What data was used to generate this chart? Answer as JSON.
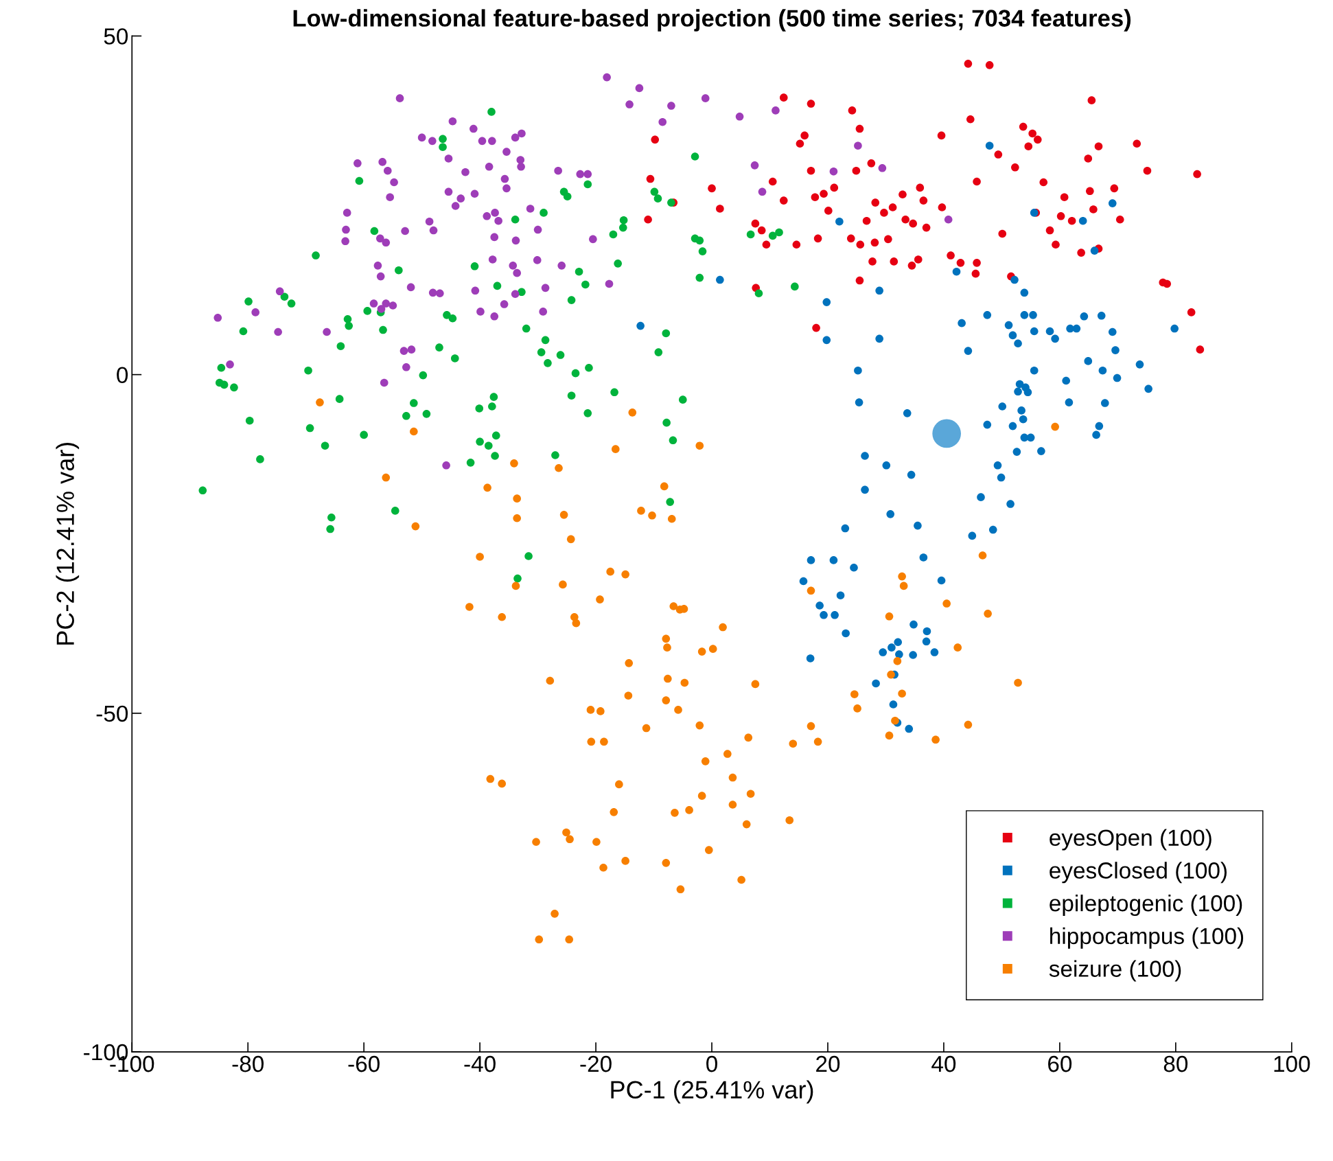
{
  "chart_data": {
    "type": "scatter",
    "title": "Low-dimensional feature-based projection (500 time series; 7034 features)",
    "xlabel": "PC-1 (25.41% var)",
    "ylabel": "PC-2 (12.41% var)",
    "xlim": [
      -100,
      100
    ],
    "ylim": [
      -100,
      50
    ],
    "xticks": [
      -100,
      -80,
      -60,
      -40,
      -20,
      0,
      20,
      40,
      60,
      80,
      100
    ],
    "yticks": [
      -100,
      -50,
      0,
      50
    ],
    "grid": false,
    "legend": "bottom right",
    "marker": "circle",
    "series": [
      {
        "name": "eyesOpen (100)",
        "color": "#e60012",
        "x": [
          44.2,
          47.9,
          12.4,
          65.5,
          17.1,
          24.2,
          44.6,
          25.5,
          53.7,
          55.3,
          -9.8,
          16,
          15.2,
          39.6,
          56.2,
          73.3,
          66.7,
          54.6,
          49.4,
          27.5,
          52.3,
          64.9,
          75.1,
          83.7,
          17.1,
          24.9,
          -10.6,
          10.5,
          0,
          45.7,
          57.2,
          69.4,
          32.9,
          35.9,
          21.1,
          19.3,
          17.8,
          12.4,
          60.8,
          65.2,
          36.5,
          28.2,
          20.1,
          1.4,
          -6.6,
          31.2,
          29.7,
          65.8,
          55.9,
          60.2,
          62.1,
          70.4,
          39.7,
          -11,
          7.5,
          26.7,
          34.7,
          37.0,
          58.3,
          50.1,
          8.6,
          14.6,
          18.3,
          24.0,
          25.6,
          28.1,
          9.4,
          59.3,
          63.7,
          66.7,
          41.2,
          35.6,
          27.7,
          31.4,
          42.9,
          45.7,
          34.5,
          45.5,
          25.5,
          51.6,
          7.6,
          77.8,
          78.5,
          82.7,
          18.0,
          84.2,
          33.4,
          30.4
        ],
        "values": [
          45.9,
          45.7,
          40.9,
          40.5,
          40.0,
          39.0,
          37.7,
          36.3,
          36.6,
          35.6,
          34.7,
          35.3,
          34.1,
          35.3,
          34.7,
          34.1,
          33.7,
          33.7,
          32.5,
          31.2,
          30.6,
          31.9,
          30.1,
          29.6,
          30.1,
          30.1,
          28.9,
          28.5,
          27.5,
          28.5,
          28.4,
          27.5,
          26.6,
          27.6,
          27.6,
          26.7,
          26.2,
          25.7,
          26.2,
          27.1,
          25.7,
          25.4,
          24.2,
          24.5,
          25.4,
          24.7,
          23.9,
          24.4,
          23.9,
          23.4,
          22.7,
          22.9,
          24.7,
          22.9,
          22.3,
          22.7,
          22.3,
          21.7,
          21.3,
          20.8,
          21.3,
          19.2,
          20.1,
          20.1,
          19.2,
          19.5,
          19.2,
          19.2,
          18.0,
          18.6,
          17.6,
          17.0,
          16.7,
          16.7,
          16.5,
          16.5,
          16.1,
          14.9,
          13.9,
          14.5,
          12.8,
          13.6,
          13.4,
          9.2,
          6.9,
          3.7,
          22.9,
          20.0
        ]
      },
      {
        "name": "eyesClosed (100)",
        "color": "#0072bd",
        "x": [
          47.9,
          69.1,
          64.0,
          55.6,
          66.0,
          22.0,
          1.4,
          28.9,
          42.2,
          52.2,
          53.9,
          19.8,
          -12.3,
          47.5,
          43.1,
          51.2,
          53.9,
          55.4,
          64.2,
          67.2,
          61.8,
          79.8,
          51.9,
          55.6,
          58.3,
          59.2,
          69.1,
          62.9,
          19.8,
          28.9,
          52.8,
          44.2,
          69.6,
          64.9,
          73.8,
          67.4,
          69.9,
          55.6,
          25.2,
          61.1,
          53.1,
          54.1,
          75.3,
          52.8,
          54.5,
          25.4,
          61.6,
          67.8,
          50.1,
          53.4,
          33.7,
          53.7,
          47.5,
          66.8,
          51.9,
          66.3,
          53.9,
          55.0,
          56.8,
          52.6,
          26.4,
          49.3,
          30.1,
          34.4,
          49.9,
          26.4,
          46.4,
          51.5,
          30.8,
          35.5,
          23.0,
          48.5,
          44.9,
          17.1,
          21.0,
          36.5,
          24.5,
          15.8,
          39.6,
          18.6,
          22.2,
          19.3,
          21.2,
          34.8,
          23.1,
          37.1,
          37.0,
          29.5,
          32.1,
          32.3,
          34.7,
          38.4,
          17.0,
          31.0,
          31.5,
          28.3,
          31.3,
          32.0,
          34.0
        ],
        "values": [
          33.8,
          25.3,
          22.7,
          23.9,
          18.3,
          22.6,
          14.0,
          12.4,
          15.2,
          14.0,
          12.1,
          10.7,
          7.2,
          8.8,
          7.6,
          7.3,
          8.8,
          8.8,
          8.6,
          8.7,
          6.8,
          6.8,
          5.8,
          6.4,
          6.4,
          5.3,
          6.3,
          6.8,
          5.1,
          5.3,
          4.6,
          3.5,
          3.6,
          2.0,
          1.5,
          0.6,
          -0.5,
          0.6,
          0.6,
          -0.9,
          -1.4,
          -1.9,
          -2.1,
          -2.5,
          -2.6,
          -4.1,
          -4.1,
          -4.2,
          -4.7,
          -5.3,
          -5.7,
          -6.6,
          -7.4,
          -7.6,
          -7.6,
          -8.9,
          -9.3,
          -9.3,
          -11.3,
          -11.4,
          -12.0,
          -13.4,
          -13.4,
          -14.8,
          -15.2,
          -17.0,
          -18.1,
          -19.1,
          -20.6,
          -22.3,
          -22.7,
          -22.9,
          -23.8,
          -27.4,
          -27.4,
          -27.0,
          -28.5,
          -30.5,
          -30.4,
          -34.1,
          -32.6,
          -35.5,
          -35.5,
          -36.9,
          -38.2,
          -37.9,
          -39.4,
          -41.0,
          -39.5,
          -41.3,
          -41.4,
          -41.0,
          -41.9,
          -40.3,
          -44.3,
          -45.6,
          -48.7,
          -51.4,
          -52.3
        ]
      },
      {
        "name": "epileptogenic (100)",
        "color": "#00b33c",
        "x": [
          -38,
          -46.4,
          -46.4,
          -2.9,
          -60.8,
          -21.4,
          -25.5,
          -24.9,
          -9.9,
          -9.3,
          -7,
          -33.9,
          -15.2,
          -15.3,
          -17,
          -29,
          -2.9,
          -2.1,
          6.7,
          10.5,
          11.6,
          -58.2,
          -1.6,
          -16.2,
          -68.3,
          -40.9,
          -54,
          -22.9,
          -21.8,
          -37,
          -2.1,
          14.3,
          8.1,
          -32.8,
          -24.2,
          -79.9,
          -72.5,
          -73.7,
          -59.4,
          -62.8,
          -62.6,
          -57.1,
          -45.7,
          -44.7,
          -80.8,
          -56.7,
          -32,
          -7.9,
          -28.7,
          -64,
          -47,
          -9.2,
          -29.4,
          -26.1,
          -44.3,
          -28.3,
          -21.2,
          -23.5,
          -84.6,
          -69.6,
          -49.8,
          -84.9,
          -84.1,
          -82.4,
          -24.2,
          -37.6,
          -16.8,
          -64.2,
          -5,
          -51.4,
          -37.9,
          -40.1,
          -21.4,
          -49.2,
          -52.7,
          -79.7,
          -7.8,
          -69.3,
          -60,
          -37.2,
          -40,
          -38.5,
          -6.7,
          -66.7,
          -37.4,
          -27,
          -77.9,
          -41.6,
          -87.8,
          -7.2,
          -54.6,
          -65.6,
          -65.8,
          -31.6,
          -33.5
        ],
        "values": [
          38.8,
          34.8,
          33.6,
          32.2,
          28.6,
          28.1,
          27.0,
          26.3,
          27.0,
          26.0,
          25.4,
          22.9,
          22.8,
          21.7,
          20.7,
          23.9,
          20.1,
          19.8,
          20.7,
          20.5,
          21.0,
          21.2,
          18.2,
          16.4,
          17.6,
          16.0,
          15.4,
          15.2,
          13.3,
          13.1,
          14.3,
          13.0,
          12.0,
          12.2,
          11.0,
          10.8,
          10.5,
          11.5,
          9.4,
          8.2,
          7.2,
          9.2,
          8.8,
          8.3,
          6.4,
          6.6,
          6.8,
          6.1,
          5.1,
          4.2,
          4.0,
          3.3,
          3.3,
          2.9,
          2.4,
          1.7,
          1.0,
          0.2,
          1.0,
          0.6,
          -0.1,
          -1.2,
          -1.5,
          -1.9,
          -3.1,
          -3.3,
          -2.6,
          -3.6,
          -3.7,
          -4.2,
          -4.7,
          -5.0,
          -5.7,
          -5.8,
          -6.1,
          -6.8,
          -7.1,
          -7.9,
          -8.9,
          -9.0,
          -9.9,
          -10.5,
          -9.7,
          -10.5,
          -12.0,
          -11.9,
          -12.5,
          -13.0,
          -17.1,
          -18.8,
          -20.1,
          -21.1,
          -22.8,
          -26.8,
          -30.1
        ]
      },
      {
        "name": "hippocampus (100)",
        "color": "#9e3db8",
        "x": [
          -18.1,
          -12.5,
          -53.8,
          -1.1,
          -14.2,
          -7,
          4.8,
          11,
          -8.5,
          -44.7,
          -41.1,
          -32.8,
          -33.9,
          -50,
          -48.2,
          -39.6,
          -37.9,
          -35.4,
          -33,
          -32.9,
          -45.4,
          -61.1,
          -56.8,
          -55.9,
          -54.8,
          -55.5,
          -42.5,
          -38.4,
          -35.7,
          -35.4,
          -26.5,
          -22.7,
          -21.4,
          7.4,
          21,
          25.2,
          29.4,
          8.7,
          -45.4,
          -43.3,
          -40.9,
          -44.2,
          -62.9,
          -63.1,
          -48.7,
          -48,
          -38.8,
          -37.4,
          -36.8,
          -31.3,
          -52.9,
          -57.2,
          -56.2,
          -37.5,
          -33.8,
          -30,
          -20.5,
          -63.2,
          -37.8,
          -30.1,
          -25.9,
          -57.6,
          -57.1,
          -34.3,
          -33.6,
          -40.8,
          -33.9,
          -28.7,
          -17.7,
          -51.9,
          -48.1,
          -46.9,
          -74.5,
          -56.2,
          -55,
          -57,
          -58.3,
          -39.9,
          -37.5,
          -35.8,
          -29.1,
          -78.7,
          -85.2,
          -74.8,
          -66.4,
          40.8,
          -53.1,
          -51.8,
          -52.7,
          -83.1,
          -56.5,
          -45.8
        ],
        "values": [
          43.9,
          42.3,
          40.8,
          40.8,
          39.9,
          39.7,
          38.1,
          39.0,
          37.3,
          37.4,
          36.3,
          35.6,
          35.0,
          35.0,
          34.5,
          34.5,
          34.5,
          32.9,
          31.7,
          30.7,
          31.9,
          31.2,
          31.4,
          30.1,
          28.4,
          26.2,
          29.9,
          30.7,
          28.9,
          27.5,
          30.1,
          29.6,
          29.6,
          30.9,
          30.0,
          33.8,
          30.5,
          27.0,
          27.0,
          26.0,
          26.7,
          24.9,
          23.9,
          21.4,
          22.6,
          21.3,
          23.4,
          23.9,
          22.7,
          24.5,
          21.2,
          20.1,
          19.5,
          20.3,
          19.8,
          21.4,
          20.0,
          19.7,
          17.0,
          16.9,
          16.1,
          16.1,
          14.5,
          16.1,
          15.0,
          12.4,
          11.9,
          12.8,
          13.4,
          12.9,
          12.1,
          12.0,
          12.3,
          10.5,
          10.2,
          9.7,
          10.5,
          9.3,
          8.6,
          10.4,
          9.3,
          9.2,
          8.4,
          6.3,
          6.3,
          22.9,
          3.5,
          3.7,
          1.1,
          1.5,
          -1.2,
          -13.4
        ]
      },
      {
        "name": "seizure (100)",
        "color": "#f77f00",
        "x": [
          -67.6,
          -13.7,
          -51.4,
          59.2,
          -16.6,
          -2.1,
          -26.4,
          -34.1,
          -56.2,
          -38.7,
          -8.2,
          -33.6,
          -12.2,
          -10.3,
          -6.9,
          -25.5,
          -33.6,
          -51.1,
          -24.3,
          -40,
          46.7,
          -17.5,
          -14.9,
          32.8,
          33.1,
          -25.7,
          -33.8,
          17.1,
          -19.3,
          40.5,
          -6.6,
          -5.5,
          -4.8,
          -41.8,
          30.6,
          47.6,
          -36.2,
          -23.7,
          -23.4,
          1.9,
          -7.9,
          -7.7,
          0.2,
          -1.7,
          42.4,
          -14.3,
          32.0,
          -7.6,
          -4.7,
          -27.9,
          7.5,
          52.8,
          30.9,
          -7.9,
          32.8,
          24.6,
          -14.4,
          -20.9,
          -19.2,
          25.1,
          -5.8,
          31.6,
          44.2,
          17.1,
          -11.3,
          -2.1,
          30.6,
          38.6,
          18.3,
          6.3,
          14.0,
          -20.8,
          -18.6,
          2.7,
          -1.1,
          -38.2,
          -36.2,
          3.6,
          -16.0,
          6.7,
          -1.7,
          3.6,
          -16.9,
          -6.4,
          -3.9,
          13.4,
          6.0,
          -25.1,
          -24.5,
          -30.3,
          -19.9,
          -0.5,
          -7.9,
          -14.9,
          -18.7,
          5.1,
          -5.4,
          -27.1,
          -29.8,
          -24.6
        ],
        "values": [
          -4.1,
          -5.6,
          -8.4,
          -7.7,
          -11.0,
          -10.5,
          -13.8,
          -13.1,
          -15.2,
          -16.7,
          -16.5,
          -18.3,
          -20.1,
          -20.8,
          -21.3,
          -20.7,
          -21.2,
          -22.4,
          -24.3,
          -26.9,
          -26.7,
          -29.1,
          -29.5,
          -29.8,
          -31.2,
          -31.0,
          -31.2,
          -31.9,
          -33.2,
          -33.8,
          -34.2,
          -34.7,
          -34.6,
          -34.3,
          -35.7,
          -35.3,
          -35.8,
          -35.8,
          -36.7,
          -37.3,
          -39.0,
          -40.3,
          -40.5,
          -40.9,
          -40.3,
          -42.6,
          -42.3,
          -44.9,
          -45.5,
          -45.2,
          -45.7,
          -45.5,
          -44.3,
          -48.1,
          -47.1,
          -47.2,
          -47.4,
          -49.5,
          -49.7,
          -49.3,
          -49.5,
          -51.1,
          -51.7,
          -51.9,
          -52.2,
          -51.8,
          -53.3,
          -53.9,
          -54.2,
          -53.6,
          -54.5,
          -54.2,
          -54.2,
          -56.0,
          -57.1,
          -59.7,
          -60.4,
          -59.5,
          -60.5,
          -61.9,
          -62.2,
          -63.5,
          -64.6,
          -64.7,
          -64.3,
          -65.8,
          -66.4,
          -67.6,
          -68.6,
          -69.0,
          -69.0,
          -70.2,
          -72.1,
          -71.8,
          -72.8,
          -74.6,
          -76.0,
          -79.6,
          -83.4,
          -83.4
        ]
      },
      {
        "color": "#5aa7d9",
        "x": [
          40.5
        ],
        "values": [
          -8.7
        ],
        "sizes": [
          1
        ]
      }
    ]
  }
}
